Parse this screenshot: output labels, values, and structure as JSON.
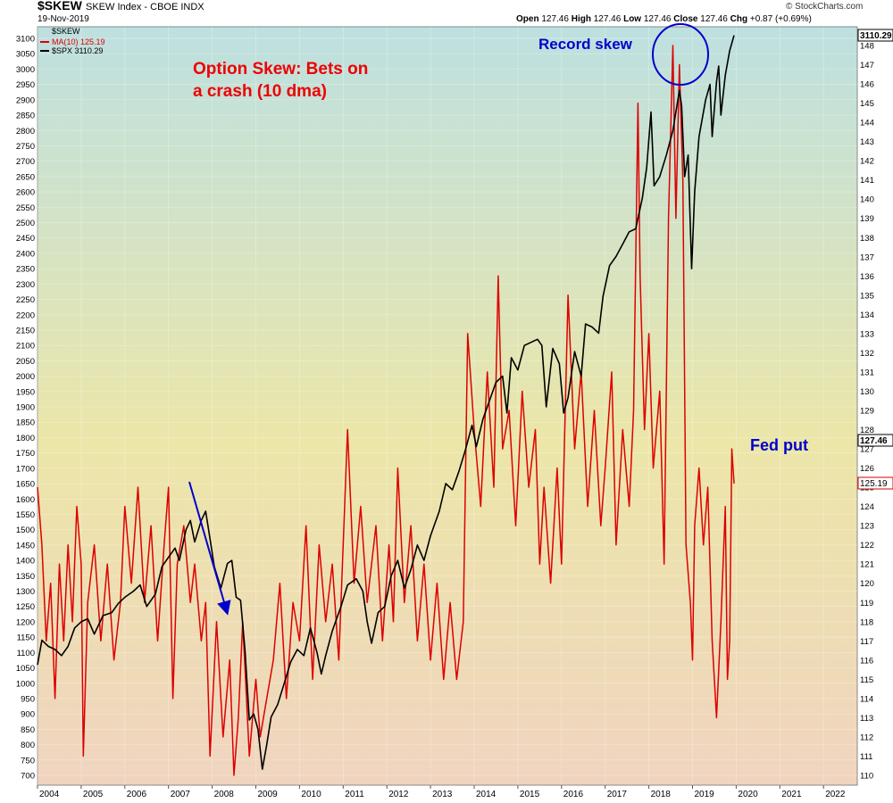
{
  "header": {
    "symbol": "$SKEW",
    "name": "SKEW Index - CBOE  INDX",
    "date": "19-Nov-2019",
    "open_label": "Open",
    "open": "127.46",
    "high_label": "High",
    "high": "127.46",
    "low_label": "Low",
    "low": "127.46",
    "close_label": "Close",
    "close": "127.46",
    "chg_label": "Chg",
    "chg": "+0.87 (+0.69%)",
    "brand": "© StockCharts.com"
  },
  "legend": {
    "title": "$SKEW",
    "ma": "MA(10) 125.19",
    "spx": "$SPX 3110.29"
  },
  "annotations": {
    "title_line1": "Option Skew: Bets on",
    "title_line2": "a crash (10 dma)",
    "record": "Record skew",
    "fed": "Fed put"
  },
  "price_tags": {
    "spx": "3110.29",
    "skew": "127.46",
    "ma": "125.19"
  },
  "colors": {
    "ma": "#dd0000",
    "spx": "#000000",
    "annot_red": "#ee0000",
    "annot_blue": "#0000cc",
    "bg_top": "#bde0e0",
    "bg_mid": "#ece6a8",
    "bg_bottom": "#f0d4c0"
  },
  "chart_data": {
    "type": "line",
    "x_axis": {
      "ticks": [
        "2004",
        "2005",
        "2006",
        "2007",
        "2008",
        "2009",
        "2010",
        "2011",
        "2012",
        "2013",
        "2014",
        "2015",
        "2016",
        "2017",
        "2018",
        "2019",
        "2020",
        "2021",
        "2022"
      ]
    },
    "y_left": {
      "label": "$SPX",
      "range": [
        650,
        3150
      ],
      "ticks": [
        700,
        750,
        800,
        850,
        900,
        950,
        1000,
        1050,
        1100,
        1150,
        1200,
        1250,
        1300,
        1350,
        1400,
        1450,
        1500,
        1550,
        1600,
        1650,
        1700,
        1750,
        1800,
        1850,
        1900,
        1950,
        2000,
        2050,
        2100,
        2150,
        2200,
        2250,
        2300,
        2350,
        2400,
        2450,
        2500,
        2550,
        2600,
        2650,
        2700,
        2750,
        2800,
        2850,
        2900,
        2950,
        3000,
        3050,
        3100
      ]
    },
    "y_right": {
      "label": "$SKEW",
      "range": [
        109.5,
        148.7
      ],
      "ticks": [
        110,
        111,
        112,
        113,
        114,
        115,
        116,
        117,
        118,
        119,
        120,
        121,
        122,
        123,
        124,
        125,
        126,
        127,
        128,
        129,
        130,
        131,
        132,
        133,
        134,
        135,
        136,
        137,
        138,
        139,
        140,
        141,
        142,
        143,
        144,
        145,
        146,
        147,
        148
      ]
    },
    "series": [
      {
        "name": "MA(10)",
        "axis": "right",
        "points": [
          [
            2004.0,
            125
          ],
          [
            2004.1,
            122
          ],
          [
            2004.2,
            117
          ],
          [
            2004.3,
            120
          ],
          [
            2004.4,
            114
          ],
          [
            2004.5,
            121
          ],
          [
            2004.6,
            117
          ],
          [
            2004.7,
            122
          ],
          [
            2004.8,
            118
          ],
          [
            2004.9,
            124
          ],
          [
            2005.0,
            121
          ],
          [
            2005.05,
            111
          ],
          [
            2005.15,
            119
          ],
          [
            2005.3,
            122
          ],
          [
            2005.45,
            117
          ],
          [
            2005.6,
            121
          ],
          [
            2005.75,
            116
          ],
          [
            2005.9,
            119
          ],
          [
            2006.0,
            124
          ],
          [
            2006.15,
            120
          ],
          [
            2006.3,
            125
          ],
          [
            2006.45,
            119
          ],
          [
            2006.6,
            123
          ],
          [
            2006.75,
            117
          ],
          [
            2006.9,
            122
          ],
          [
            2007.0,
            125
          ],
          [
            2007.1,
            114
          ],
          [
            2007.2,
            121
          ],
          [
            2007.35,
            123
          ],
          [
            2007.5,
            119
          ],
          [
            2007.6,
            121
          ],
          [
            2007.75,
            117
          ],
          [
            2007.85,
            119
          ],
          [
            2007.95,
            111
          ],
          [
            2008.1,
            118
          ],
          [
            2008.25,
            112
          ],
          [
            2008.4,
            116
          ],
          [
            2008.5,
            110
          ],
          [
            2008.6,
            113
          ],
          [
            2008.7,
            118
          ],
          [
            2008.85,
            111
          ],
          [
            2009.0,
            115
          ],
          [
            2009.1,
            112
          ],
          [
            2009.25,
            114
          ],
          [
            2009.4,
            116
          ],
          [
            2009.55,
            120
          ],
          [
            2009.7,
            114
          ],
          [
            2009.85,
            119
          ],
          [
            2010.0,
            117
          ],
          [
            2010.15,
            123
          ],
          [
            2010.3,
            115
          ],
          [
            2010.45,
            122
          ],
          [
            2010.6,
            118
          ],
          [
            2010.75,
            121
          ],
          [
            2010.9,
            116
          ],
          [
            2011.1,
            128
          ],
          [
            2011.25,
            120
          ],
          [
            2011.4,
            124
          ],
          [
            2011.55,
            119
          ],
          [
            2011.75,
            123
          ],
          [
            2011.9,
            117
          ],
          [
            2012.05,
            122
          ],
          [
            2012.15,
            118
          ],
          [
            2012.25,
            126
          ],
          [
            2012.4,
            119
          ],
          [
            2012.55,
            123
          ],
          [
            2012.7,
            117
          ],
          [
            2012.85,
            121
          ],
          [
            2013.0,
            116
          ],
          [
            2013.15,
            120
          ],
          [
            2013.3,
            115
          ],
          [
            2013.45,
            119
          ],
          [
            2013.6,
            115
          ],
          [
            2013.75,
            118
          ],
          [
            2013.85,
            133
          ],
          [
            2014.0,
            128
          ],
          [
            2014.15,
            124
          ],
          [
            2014.3,
            131
          ],
          [
            2014.45,
            125
          ],
          [
            2014.55,
            136
          ],
          [
            2014.65,
            127
          ],
          [
            2014.8,
            129
          ],
          [
            2014.95,
            123
          ],
          [
            2015.1,
            130
          ],
          [
            2015.25,
            125
          ],
          [
            2015.4,
            128
          ],
          [
            2015.5,
            121
          ],
          [
            2015.6,
            125
          ],
          [
            2015.75,
            120
          ],
          [
            2015.9,
            126
          ],
          [
            2016.0,
            121
          ],
          [
            2016.15,
            135
          ],
          [
            2016.3,
            127
          ],
          [
            2016.45,
            131
          ],
          [
            2016.6,
            124
          ],
          [
            2016.75,
            129
          ],
          [
            2016.9,
            123
          ],
          [
            2017.0,
            126
          ],
          [
            2017.15,
            131
          ],
          [
            2017.25,
            122
          ],
          [
            2017.4,
            128
          ],
          [
            2017.55,
            124
          ],
          [
            2017.65,
            129
          ],
          [
            2017.75,
            145
          ],
          [
            2017.8,
            136
          ],
          [
            2017.9,
            128
          ],
          [
            2018.0,
            133
          ],
          [
            2018.1,
            126
          ],
          [
            2018.25,
            130
          ],
          [
            2018.35,
            121
          ],
          [
            2018.45,
            139
          ],
          [
            2018.55,
            148
          ],
          [
            2018.62,
            139
          ],
          [
            2018.7,
            147
          ],
          [
            2018.78,
            141
          ],
          [
            2018.85,
            122
          ],
          [
            2018.95,
            119
          ],
          [
            2019.0,
            116
          ],
          [
            2019.05,
            123
          ],
          [
            2019.15,
            126
          ],
          [
            2019.25,
            122
          ],
          [
            2019.35,
            125
          ],
          [
            2019.45,
            117
          ],
          [
            2019.55,
            113
          ],
          [
            2019.65,
            118
          ],
          [
            2019.75,
            124
          ],
          [
            2019.8,
            115
          ],
          [
            2019.85,
            117
          ],
          [
            2019.9,
            127
          ],
          [
            2019.95,
            125.19
          ]
        ]
      },
      {
        "name": "$SPX",
        "axis": "left",
        "points": [
          [
            2004.0,
            1060
          ],
          [
            2004.1,
            1140
          ],
          [
            2004.25,
            1120
          ],
          [
            2004.4,
            1110
          ],
          [
            2004.55,
            1090
          ],
          [
            2004.7,
            1120
          ],
          [
            2004.85,
            1180
          ],
          [
            2005.0,
            1200
          ],
          [
            2005.15,
            1210
          ],
          [
            2005.3,
            1160
          ],
          [
            2005.5,
            1220
          ],
          [
            2005.7,
            1230
          ],
          [
            2005.85,
            1260
          ],
          [
            2006.0,
            1280
          ],
          [
            2006.2,
            1300
          ],
          [
            2006.35,
            1320
          ],
          [
            2006.5,
            1250
          ],
          [
            2006.7,
            1290
          ],
          [
            2006.85,
            1380
          ],
          [
            2007.0,
            1410
          ],
          [
            2007.15,
            1440
          ],
          [
            2007.25,
            1400
          ],
          [
            2007.4,
            1500
          ],
          [
            2007.5,
            1530
          ],
          [
            2007.6,
            1460
          ],
          [
            2007.75,
            1530
          ],
          [
            2007.85,
            1560
          ],
          [
            2007.95,
            1470
          ],
          [
            2008.05,
            1380
          ],
          [
            2008.2,
            1310
          ],
          [
            2008.35,
            1390
          ],
          [
            2008.45,
            1400
          ],
          [
            2008.55,
            1280
          ],
          [
            2008.65,
            1270
          ],
          [
            2008.75,
            1110
          ],
          [
            2008.85,
            880
          ],
          [
            2008.95,
            900
          ],
          [
            2009.05,
            850
          ],
          [
            2009.15,
            720
          ],
          [
            2009.25,
            800
          ],
          [
            2009.35,
            890
          ],
          [
            2009.5,
            930
          ],
          [
            2009.65,
            1000
          ],
          [
            2009.8,
            1070
          ],
          [
            2009.95,
            1110
          ],
          [
            2010.1,
            1090
          ],
          [
            2010.25,
            1180
          ],
          [
            2010.4,
            1100
          ],
          [
            2010.5,
            1030
          ],
          [
            2010.6,
            1090
          ],
          [
            2010.75,
            1170
          ],
          [
            2010.95,
            1250
          ],
          [
            2011.1,
            1320
          ],
          [
            2011.3,
            1340
          ],
          [
            2011.45,
            1300
          ],
          [
            2011.55,
            1200
          ],
          [
            2011.65,
            1130
          ],
          [
            2011.8,
            1230
          ],
          [
            2011.95,
            1250
          ],
          [
            2012.1,
            1350
          ],
          [
            2012.25,
            1400
          ],
          [
            2012.4,
            1310
          ],
          [
            2012.55,
            1370
          ],
          [
            2012.7,
            1450
          ],
          [
            2012.85,
            1400
          ],
          [
            2013.0,
            1480
          ],
          [
            2013.2,
            1560
          ],
          [
            2013.35,
            1650
          ],
          [
            2013.5,
            1630
          ],
          [
            2013.65,
            1690
          ],
          [
            2013.8,
            1760
          ],
          [
            2013.95,
            1840
          ],
          [
            2014.05,
            1770
          ],
          [
            2014.2,
            1860
          ],
          [
            2014.35,
            1920
          ],
          [
            2014.5,
            1980
          ],
          [
            2014.65,
            2000
          ],
          [
            2014.75,
            1880
          ],
          [
            2014.85,
            2060
          ],
          [
            2015.0,
            2020
          ],
          [
            2015.15,
            2100
          ],
          [
            2015.3,
            2110
          ],
          [
            2015.45,
            2120
          ],
          [
            2015.55,
            2100
          ],
          [
            2015.65,
            1900
          ],
          [
            2015.8,
            2090
          ],
          [
            2015.95,
            2040
          ],
          [
            2016.05,
            1880
          ],
          [
            2016.15,
            1930
          ],
          [
            2016.3,
            2080
          ],
          [
            2016.45,
            2000
          ],
          [
            2016.55,
            2170
          ],
          [
            2016.7,
            2160
          ],
          [
            2016.85,
            2140
          ],
          [
            2016.95,
            2260
          ],
          [
            2017.1,
            2360
          ],
          [
            2017.25,
            2390
          ],
          [
            2017.4,
            2430
          ],
          [
            2017.55,
            2470
          ],
          [
            2017.7,
            2480
          ],
          [
            2017.85,
            2580
          ],
          [
            2017.95,
            2680
          ],
          [
            2018.05,
            2860
          ],
          [
            2018.12,
            2620
          ],
          [
            2018.25,
            2650
          ],
          [
            2018.4,
            2720
          ],
          [
            2018.55,
            2800
          ],
          [
            2018.7,
            2930
          ],
          [
            2018.75,
            2880
          ],
          [
            2018.82,
            2650
          ],
          [
            2018.9,
            2720
          ],
          [
            2018.98,
            2350
          ],
          [
            2019.05,
            2600
          ],
          [
            2019.15,
            2780
          ],
          [
            2019.3,
            2900
          ],
          [
            2019.4,
            2950
          ],
          [
            2019.45,
            2780
          ],
          [
            2019.55,
            2960
          ],
          [
            2019.6,
            3010
          ],
          [
            2019.65,
            2850
          ],
          [
            2019.75,
            2980
          ],
          [
            2019.85,
            3060
          ],
          [
            2019.95,
            3110
          ]
        ]
      }
    ]
  }
}
